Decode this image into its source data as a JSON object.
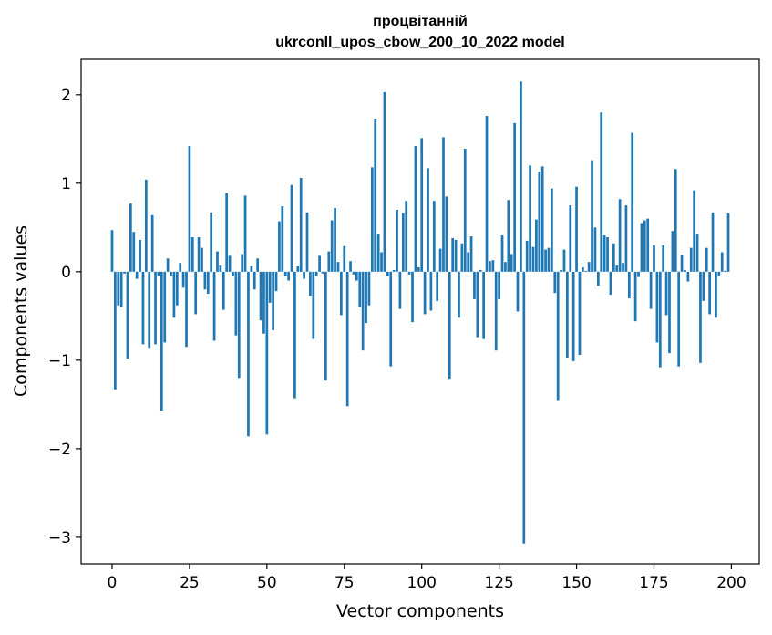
{
  "chart_data": {
    "type": "bar",
    "title": "процвітанній",
    "subtitle": "ukrconll_upos_cbow_200_10_2022 model",
    "xlabel": "Vector components",
    "ylabel": "Components values",
    "xlim": [
      -10,
      209
    ],
    "ylim": [
      -3.3,
      2.4
    ],
    "xticks": [
      0,
      25,
      50,
      75,
      100,
      125,
      150,
      175,
      200
    ],
    "xtick_labels": [
      "0",
      "25",
      "50",
      "75",
      "100",
      "125",
      "150",
      "175",
      "200"
    ],
    "yticks": [
      -3,
      -2,
      -1,
      0,
      1,
      2
    ],
    "ytick_labels": [
      "−3",
      "−2",
      "−1",
      "0",
      "1",
      "2"
    ],
    "grid": false,
    "bar_color": "#1f77b4",
    "x": [
      0,
      1,
      2,
      3,
      4,
      5,
      6,
      7,
      8,
      9,
      10,
      11,
      12,
      13,
      14,
      15,
      16,
      17,
      18,
      19,
      20,
      21,
      22,
      23,
      24,
      25,
      26,
      27,
      28,
      29,
      30,
      31,
      32,
      33,
      34,
      35,
      36,
      37,
      38,
      39,
      40,
      41,
      42,
      43,
      44,
      45,
      46,
      47,
      48,
      49,
      50,
      51,
      52,
      53,
      54,
      55,
      56,
      57,
      58,
      59,
      60,
      61,
      62,
      63,
      64,
      65,
      66,
      67,
      68,
      69,
      70,
      71,
      72,
      73,
      74,
      75,
      76,
      77,
      78,
      79,
      80,
      81,
      82,
      83,
      84,
      85,
      86,
      87,
      88,
      89,
      90,
      91,
      92,
      93,
      94,
      95,
      96,
      97,
      98,
      99,
      100,
      101,
      102,
      103,
      104,
      105,
      106,
      107,
      108,
      109,
      110,
      111,
      112,
      113,
      114,
      115,
      116,
      117,
      118,
      119,
      120,
      121,
      122,
      123,
      124,
      125,
      126,
      127,
      128,
      129,
      130,
      131,
      132,
      133,
      134,
      135,
      136,
      137,
      138,
      139,
      140,
      141,
      142,
      143,
      144,
      145,
      146,
      147,
      148,
      149,
      150,
      151,
      152,
      153,
      154,
      155,
      156,
      157,
      158,
      159,
      160,
      161,
      162,
      163,
      164,
      165,
      166,
      167,
      168,
      169,
      170,
      171,
      172,
      173,
      174,
      175,
      176,
      177,
      178,
      179,
      180,
      181,
      182,
      183,
      184,
      185,
      186,
      187,
      188,
      189,
      190,
      191,
      192,
      193,
      194,
      195,
      196,
      197,
      198,
      199
    ],
    "values": [
      0.47,
      -1.33,
      -0.38,
      -0.4,
      -0.02,
      -0.98,
      0.77,
      0.45,
      -0.08,
      0.36,
      -0.82,
      1.04,
      -0.86,
      0.64,
      -0.82,
      -0.05,
      -1.57,
      -0.8,
      0.15,
      -0.05,
      -0.52,
      -0.38,
      0.1,
      -0.18,
      -0.85,
      1.42,
      0.39,
      -0.48,
      0.39,
      0.27,
      -0.2,
      -0.25,
      0.67,
      -0.78,
      0.23,
      0.07,
      -0.43,
      0.89,
      0.18,
      -0.05,
      -0.72,
      -1.2,
      0.2,
      0.86,
      -1.86,
      0.06,
      -0.2,
      0.15,
      -0.55,
      -0.7,
      -1.84,
      -0.35,
      -0.66,
      -0.22,
      0.57,
      0.74,
      -0.05,
      -0.1,
      0.98,
      -1.43,
      0.06,
      1.06,
      -0.08,
      0.67,
      -0.27,
      -0.76,
      -0.05,
      0.18,
      -0.02,
      -1.23,
      0.23,
      0.58,
      0.72,
      0.11,
      -0.49,
      0.29,
      -1.52,
      0.12,
      -0.03,
      -0.1,
      -0.4,
      -0.89,
      -0.58,
      -0.38,
      1.18,
      1.73,
      0.43,
      0.22,
      2.03,
      -0.05,
      -1.07,
      0.02,
      0.7,
      -0.42,
      0.66,
      0.8,
      -0.03,
      -0.57,
      1.42,
      0.05,
      1.51,
      -0.48,
      1.17,
      -0.44,
      0.8,
      -0.33,
      0.26,
      1.52,
      0.85,
      -1.21,
      0.38,
      0.36,
      -0.52,
      0.32,
      1.39,
      0.22,
      0.4,
      -0.31,
      -0.74,
      0.02,
      -0.76,
      1.76,
      0.12,
      0.13,
      -0.89,
      -0.31,
      0.41,
      0.11,
      0.81,
      0.2,
      1.68,
      -0.45,
      2.15,
      -3.07,
      0.35,
      1.2,
      0.28,
      0.59,
      1.13,
      1.19,
      0.25,
      0.27,
      0.94,
      -0.24,
      -1.45,
      0.02,
      0.25,
      -0.97,
      0.75,
      -1.01,
      0.96,
      -0.94,
      0.05,
      0.01,
      0.11,
      1.26,
      0.5,
      -0.16,
      1.8,
      0.41,
      0.39,
      -0.26,
      0.32,
      0.07,
      0.82,
      0.1,
      0.75,
      -0.3,
      1.57,
      -0.56,
      -0.06,
      0.55,
      0.58,
      0.6,
      -0.42,
      0.3,
      -0.8,
      -1.08,
      0.3,
      -0.49,
      -0.92,
      0.46,
      1.16,
      -1.07,
      0.19,
      0.02,
      -0.11,
      0.27,
      0.92,
      0.43,
      -1.03,
      -0.33,
      0.27,
      -0.48,
      0.67,
      -0.52,
      -0.05,
      0.22,
      0.01,
      0.66
    ]
  }
}
